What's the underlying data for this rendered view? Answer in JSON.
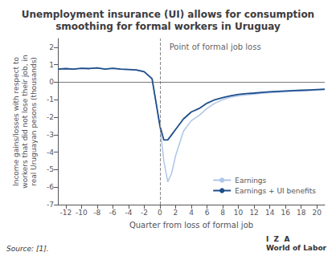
{
  "chart_data": {
    "type": "line",
    "title": "Unemployment insurance (UI) allows for consumption\nsmoothing for formal workers in Uruguay",
    "x_label": "Quarter from loss of formal job",
    "y_label": "Income gains/losses with respect to\nworkers that did not lose their job, in\nreal Uruguayan pesons (thousands)",
    "annotations": [
      {
        "text": "Point of formal job loss",
        "x": 1.2,
        "y": 2.0
      }
    ],
    "source": "Source: [1].",
    "logo_text": "I  Z  A\nWorld of Labor",
    "vlines": [
      0
    ],
    "hlines": [
      0
    ],
    "x": [
      -13,
      -12,
      -11,
      -10,
      -9,
      -8,
      -7,
      -6,
      -5,
      -4,
      -3,
      -2,
      -1,
      0,
      0.5,
      1,
      1.5,
      2,
      3,
      4,
      5,
      6,
      7,
      8,
      9,
      10,
      11,
      12,
      13,
      14,
      15,
      16,
      17,
      18,
      19,
      20,
      21
    ],
    "series": [
      {
        "name": "Earnings",
        "color": "#aec6e8",
        "values": [
          0.75,
          0.78,
          0.75,
          0.8,
          0.78,
          0.82,
          0.75,
          0.8,
          0.75,
          0.73,
          0.7,
          0.6,
          0.2,
          -2.5,
          -4.5,
          -5.7,
          -5.2,
          -4.2,
          -2.8,
          -2.2,
          -1.9,
          -1.5,
          -1.2,
          -1.0,
          -0.85,
          -0.78,
          -0.72,
          -0.68,
          -0.63,
          -0.6,
          -0.57,
          -0.54,
          -0.52,
          -0.5,
          -0.48,
          -0.45,
          -0.43
        ]
      },
      {
        "name": "Earnings + UI benefits",
        "color": "#1f4e8c",
        "values": [
          0.75,
          0.78,
          0.75,
          0.8,
          0.78,
          0.82,
          0.75,
          0.8,
          0.75,
          0.73,
          0.7,
          0.6,
          0.2,
          -2.5,
          -3.3,
          -3.3,
          -3.0,
          -2.7,
          -2.1,
          -1.7,
          -1.5,
          -1.2,
          -1.0,
          -0.88,
          -0.78,
          -0.7,
          -0.65,
          -0.62,
          -0.58,
          -0.55,
          -0.52,
          -0.5,
          -0.48,
          -0.46,
          -0.44,
          -0.42,
          -0.4
        ]
      }
    ],
    "xlim": [
      -13,
      21
    ],
    "ylim": [
      -7,
      2.5
    ],
    "xticks": [
      -12,
      -10,
      -8,
      -6,
      -4,
      -2,
      0,
      2,
      4,
      6,
      8,
      10,
      12,
      14,
      16,
      18,
      20
    ],
    "yticks": [
      -7,
      -6,
      -5,
      -4,
      -3,
      -2,
      -1,
      0,
      1,
      2
    ],
    "grid": false,
    "legend": "lower right"
  }
}
